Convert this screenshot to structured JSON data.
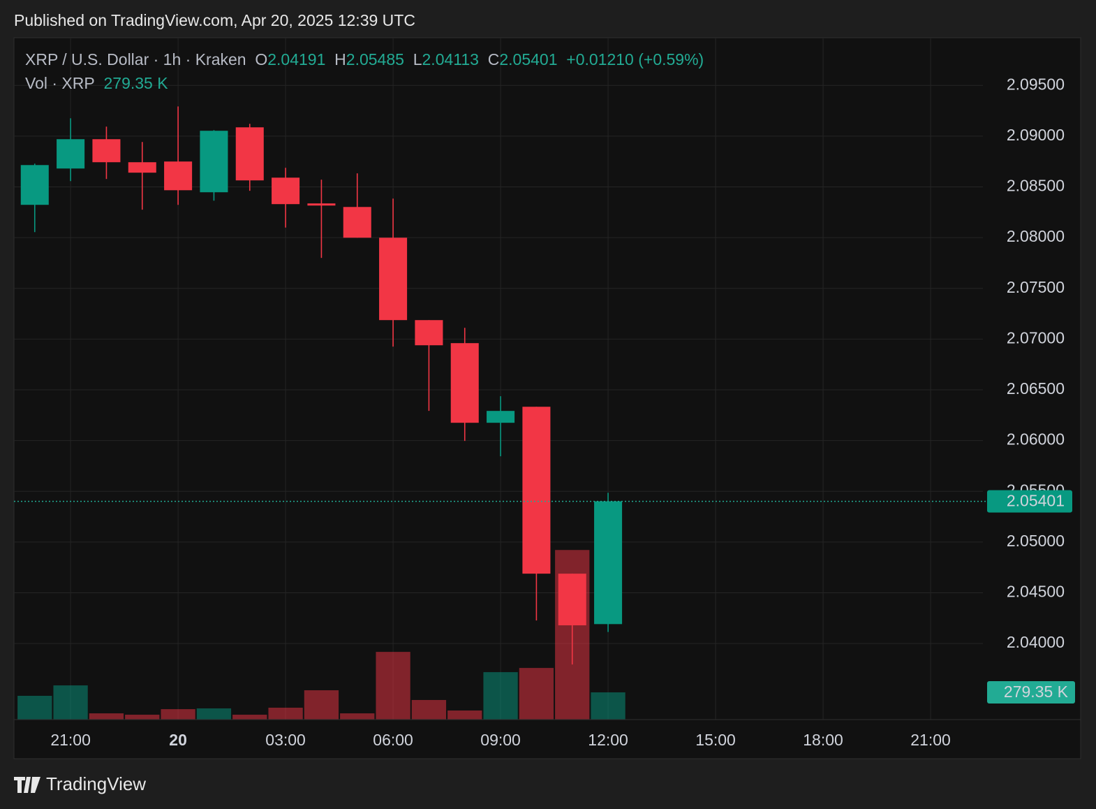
{
  "header": "Published on TradingView.com, Apr 20, 2025 12:39 UTC",
  "footer": "TradingView",
  "chart_data": {
    "type": "candlestick",
    "symbol": "XRP / U.S. Dollar · 1h · Kraken",
    "ohlc_letters": [
      "O",
      "H",
      "L",
      "C"
    ],
    "change": "+0.01210 (+0.59%)",
    "volume_title": "Vol · XRP",
    "last_volume_label": "279.35 K",
    "up_color": "#089981",
    "down_color": "#f23645",
    "x": [
      20,
      21,
      22,
      23,
      24,
      25,
      26,
      27,
      28,
      29,
      30,
      31,
      32,
      33,
      34,
      35,
      36
    ],
    "open": [
      2.08323,
      2.08681,
      2.0897,
      2.08743,
      2.0875,
      2.08447,
      2.09087,
      2.08591,
      2.08337,
      2.08302,
      2.07999,
      2.07187,
      2.0696,
      2.06175,
      2.06333,
      2.04688,
      2.04191
    ],
    "high": [
      2.08729,
      2.09176,
      2.09094,
      2.08942,
      2.09293,
      2.09059,
      2.09121,
      2.08688,
      2.08571,
      2.08633,
      2.08385,
      2.07187,
      2.07111,
      2.06437,
      2.06333,
      2.04688,
      2.05485
    ],
    "low": [
      2.08054,
      2.08557,
      2.08578,
      2.08275,
      2.08323,
      2.08364,
      2.08461,
      2.08099,
      2.078,
      2.07999,
      2.06926,
      2.06292,
      2.05996,
      2.05845,
      2.04227,
      2.03793,
      2.04113
    ],
    "close": [
      2.08715,
      2.0897,
      2.08743,
      2.0864,
      2.08467,
      2.09053,
      2.08564,
      2.0833,
      2.08316,
      2.07999,
      2.07187,
      2.06939,
      2.06175,
      2.06292,
      2.04688,
      2.04179,
      2.05401
    ],
    "volume": [
      244,
      351,
      64,
      50,
      107,
      115,
      50,
      122,
      301,
      64,
      695,
      201,
      93,
      487,
      530,
      1741,
      279.35
    ],
    "vlim": [
      0,
      7000
    ],
    "xlim": [
      19.42,
      46.46
    ],
    "xticks": [
      {
        "value": 21,
        "label": "21:00"
      },
      {
        "value": 24,
        "label": "20"
      },
      {
        "value": 27,
        "label": "03:00"
      },
      {
        "value": 30,
        "label": "06:00"
      },
      {
        "value": 33,
        "label": "09:00"
      },
      {
        "value": 36,
        "label": "12:00"
      },
      {
        "value": 39,
        "label": "15:00"
      },
      {
        "value": 42,
        "label": "18:00"
      },
      {
        "value": 45,
        "label": "21:00"
      }
    ],
    "ylim": [
      2.0325,
      2.0997
    ],
    "yticks": [
      {
        "value": 2.095,
        "label": "2.09500"
      },
      {
        "value": 2.09,
        "label": "2.09000"
      },
      {
        "value": 2.085,
        "label": "2.08500"
      },
      {
        "value": 2.08,
        "label": "2.08000"
      },
      {
        "value": 2.075,
        "label": "2.07500"
      },
      {
        "value": 2.07,
        "label": "2.07000"
      },
      {
        "value": 2.065,
        "label": "2.06500"
      },
      {
        "value": 2.06,
        "label": "2.06000"
      },
      {
        "value": 2.055,
        "label": "2.05500"
      },
      {
        "value": 2.05,
        "label": "2.05000"
      },
      {
        "value": 2.045,
        "label": "2.04500"
      },
      {
        "value": 2.04,
        "label": "2.04000"
      }
    ],
    "grid": true
  }
}
